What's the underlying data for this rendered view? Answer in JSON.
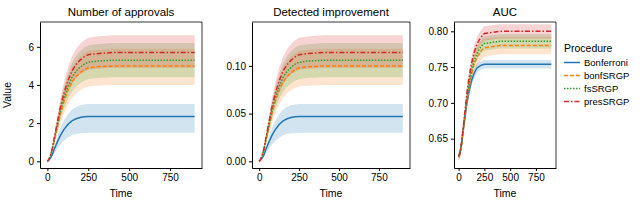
{
  "chart_data": [
    {
      "type": "line",
      "title": "Number of approvals",
      "x_label": "Time",
      "y_label": "Value",
      "x": [
        0,
        10,
        20,
        30,
        40,
        60,
        80,
        100,
        125,
        150,
        175,
        200,
        225,
        250,
        300,
        400,
        500,
        600,
        700,
        800,
        900
      ],
      "xlim": [
        -45,
        945
      ],
      "xticks": [
        0,
        250,
        500,
        750
      ],
      "ylim": [
        -0.35,
        7.3
      ],
      "yticks": [
        0,
        2,
        4,
        6
      ],
      "series": [
        {
          "color": "#1f77b4",
          "line_style": "solid",
          "values": [
            0,
            0.07,
            0.19,
            0.35,
            0.59,
            0.99,
            1.36,
            1.65,
            1.93,
            2.12,
            2.23,
            2.3,
            2.33,
            2.35,
            2.35,
            2.35,
            2.35,
            2.35,
            2.35,
            2.35,
            2.35
          ],
          "lower": [
            0,
            0.04,
            0.12,
            0.22,
            0.38,
            0.63,
            0.87,
            1.06,
            1.23,
            1.36,
            1.43,
            1.47,
            1.49,
            1.5,
            1.5,
            1.5,
            1.5,
            1.5,
            1.5,
            1.5,
            1.5
          ],
          "upper": [
            0,
            0.09,
            0.24,
            0.45,
            0.75,
            1.26,
            1.74,
            2.11,
            2.46,
            2.71,
            2.85,
            2.94,
            2.98,
            3.0,
            3.0,
            3.0,
            3.0,
            3.0,
            3.0,
            3.0,
            3.0
          ]
        },
        {
          "color": "#ff7f0e",
          "line_style": "dashed",
          "values": [
            0,
            0.1,
            0.3,
            0.6,
            1.0,
            1.75,
            2.5,
            3.1,
            3.7,
            4.15,
            4.45,
            4.65,
            4.8,
            4.9,
            4.95,
            5.0,
            5.0,
            5.0,
            5.0,
            5.0,
            5.0
          ],
          "lower": [
            0,
            0.08,
            0.24,
            0.48,
            0.8,
            1.4,
            2.0,
            2.48,
            2.96,
            3.32,
            3.56,
            3.72,
            3.84,
            3.92,
            3.96,
            4.0,
            4.0,
            4.0,
            4.0,
            4.0,
            4.0
          ],
          "upper": [
            0,
            0.12,
            0.35,
            0.71,
            1.18,
            2.07,
            2.95,
            3.66,
            4.37,
            4.9,
            5.25,
            5.49,
            5.66,
            5.78,
            5.84,
            5.9,
            5.9,
            5.9,
            5.9,
            5.9,
            5.9
          ]
        },
        {
          "color": "#2ca02c",
          "line_style": "dotted",
          "values": [
            0,
            0.11,
            0.32,
            0.64,
            1.06,
            1.86,
            2.65,
            3.29,
            3.92,
            4.4,
            4.72,
            4.93,
            5.09,
            5.19,
            5.25,
            5.3,
            5.3,
            5.3,
            5.3,
            5.3,
            5.3
          ],
          "lower": [
            0,
            0.09,
            0.27,
            0.53,
            0.88,
            1.54,
            2.2,
            2.73,
            3.25,
            3.65,
            3.92,
            4.09,
            4.22,
            4.31,
            4.36,
            4.4,
            4.4,
            4.4,
            4.4,
            4.4,
            4.4
          ],
          "upper": [
            0,
            0.13,
            0.37,
            0.75,
            1.24,
            2.18,
            3.1,
            3.85,
            4.59,
            5.15,
            5.52,
            5.77,
            5.96,
            6.07,
            6.14,
            6.2,
            6.2,
            6.2,
            6.2,
            6.2,
            6.2
          ]
        },
        {
          "color": "#d62728",
          "line_style": "dashdot",
          "values": [
            0,
            0.11,
            0.34,
            0.68,
            1.14,
            2.0,
            2.85,
            3.53,
            4.22,
            4.73,
            5.07,
            5.3,
            5.47,
            5.59,
            5.64,
            5.7,
            5.7,
            5.7,
            5.7,
            5.7,
            5.7
          ],
          "lower": [
            0,
            0.1,
            0.29,
            0.58,
            0.98,
            1.72,
            2.45,
            3.04,
            3.63,
            4.07,
            4.36,
            4.56,
            4.7,
            4.8,
            4.85,
            4.9,
            4.9,
            4.9,
            4.9,
            4.9,
            4.9
          ],
          "upper": [
            0,
            0.13,
            0.39,
            0.79,
            1.32,
            2.31,
            3.31,
            4.1,
            4.9,
            5.49,
            5.88,
            6.15,
            6.35,
            6.48,
            6.54,
            6.6,
            6.6,
            6.6,
            6.6,
            6.6,
            6.6
          ]
        }
      ]
    },
    {
      "type": "line",
      "title": "Detected improvement",
      "x_label": "Time",
      "x": [
        0,
        10,
        20,
        30,
        40,
        60,
        80,
        100,
        125,
        150,
        175,
        200,
        225,
        250,
        300,
        400,
        500,
        600,
        700,
        800,
        900
      ],
      "xlim": [
        -45,
        945
      ],
      "xticks": [
        0,
        250,
        500,
        750
      ],
      "ylim": [
        -0.007,
        0.146
      ],
      "yticks": [
        {
          "value": 0,
          "label": "0.00"
        },
        {
          "value": 0.05,
          "label": "0.05"
        },
        {
          "value": 0.1,
          "label": "0.10"
        }
      ],
      "series": [
        {
          "color": "#1f77b4",
          "line_style": "solid",
          "values": [
            0,
            0.0014,
            0.0038,
            0.007,
            0.0118,
            0.0198,
            0.0272,
            0.033,
            0.0386,
            0.0424,
            0.0446,
            0.046,
            0.0466,
            0.047,
            0.047,
            0.047,
            0.047,
            0.047,
            0.047,
            0.047,
            0.047
          ],
          "lower": [
            0,
            0.0008,
            0.0024,
            0.0044,
            0.0076,
            0.0126,
            0.0174,
            0.0212,
            0.0246,
            0.0272,
            0.0286,
            0.0294,
            0.0298,
            0.03,
            0.03,
            0.03,
            0.03,
            0.03,
            0.03,
            0.03,
            0.03
          ],
          "upper": [
            0,
            0.0018,
            0.0048,
            0.009,
            0.015,
            0.0252,
            0.0348,
            0.0422,
            0.0492,
            0.0542,
            0.057,
            0.0588,
            0.0596,
            0.06,
            0.06,
            0.06,
            0.06,
            0.06,
            0.06,
            0.06,
            0.06
          ]
        },
        {
          "color": "#ff7f0e",
          "line_style": "dashed",
          "values": [
            0,
            0.002,
            0.006,
            0.012,
            0.02,
            0.035,
            0.05,
            0.062,
            0.074,
            0.083,
            0.089,
            0.093,
            0.096,
            0.098,
            0.099,
            0.1,
            0.1,
            0.1,
            0.1,
            0.1,
            0.1
          ],
          "lower": [
            0,
            0.0016,
            0.0048,
            0.0096,
            0.016,
            0.028,
            0.04,
            0.0496,
            0.0592,
            0.0664,
            0.0712,
            0.0744,
            0.0768,
            0.0784,
            0.0792,
            0.08,
            0.08,
            0.08,
            0.08,
            0.08,
            0.08
          ],
          "upper": [
            0,
            0.0024,
            0.007,
            0.0142,
            0.0236,
            0.0414,
            0.059,
            0.0732,
            0.0874,
            0.098,
            0.105,
            0.1098,
            0.1132,
            0.1156,
            0.1168,
            0.118,
            0.118,
            0.118,
            0.118,
            0.118,
            0.118
          ]
        },
        {
          "color": "#2ca02c",
          "line_style": "dotted",
          "values": [
            0,
            0.0022,
            0.0064,
            0.0128,
            0.0212,
            0.0372,
            0.053,
            0.0658,
            0.0784,
            0.088,
            0.0944,
            0.0986,
            0.1018,
            0.1038,
            0.105,
            0.106,
            0.106,
            0.106,
            0.106,
            0.106,
            0.106
          ],
          "lower": [
            0,
            0.0018,
            0.0054,
            0.0106,
            0.0176,
            0.0308,
            0.044,
            0.0546,
            0.065,
            0.073,
            0.0784,
            0.0818,
            0.0844,
            0.0862,
            0.0872,
            0.088,
            0.088,
            0.088,
            0.088,
            0.088,
            0.088
          ],
          "upper": [
            0,
            0.0026,
            0.0074,
            0.015,
            0.0248,
            0.0436,
            0.062,
            0.077,
            0.0918,
            0.103,
            0.1104,
            0.1154,
            0.1192,
            0.1214,
            0.1228,
            0.124,
            0.124,
            0.124,
            0.124,
            0.124,
            0.124
          ]
        },
        {
          "color": "#d62728",
          "line_style": "dashdot",
          "values": [
            0,
            0.0022,
            0.0068,
            0.0136,
            0.0228,
            0.04,
            0.057,
            0.0706,
            0.0844,
            0.0946,
            0.1014,
            0.106,
            0.1094,
            0.1118,
            0.1128,
            0.114,
            0.114,
            0.114,
            0.114,
            0.114,
            0.114
          ],
          "lower": [
            0,
            0.002,
            0.0058,
            0.0116,
            0.0196,
            0.0344,
            0.049,
            0.0608,
            0.0726,
            0.0814,
            0.0872,
            0.0912,
            0.094,
            0.096,
            0.097,
            0.098,
            0.098,
            0.098,
            0.098,
            0.098,
            0.098
          ],
          "upper": [
            0,
            0.0026,
            0.0078,
            0.0158,
            0.0264,
            0.0462,
            0.0662,
            0.082,
            0.098,
            0.1098,
            0.1176,
            0.123,
            0.127,
            0.1296,
            0.1308,
            0.132,
            0.132,
            0.132,
            0.132,
            0.132,
            0.132
          ]
        }
      ]
    },
    {
      "type": "line",
      "title": "AUC",
      "x_label": "Time",
      "legend": "right",
      "legend_title": "Procedure",
      "x": [
        0,
        10,
        20,
        30,
        40,
        60,
        80,
        100,
        125,
        150,
        175,
        200,
        225,
        250,
        300,
        400,
        500,
        600,
        700,
        800,
        900
      ],
      "xlim": [
        -45,
        945
      ],
      "xticks": [
        0,
        250,
        500,
        750
      ],
      "ylim": [
        0.609,
        0.813
      ],
      "yticks": [
        {
          "value": 0.65,
          "label": "0.65"
        },
        {
          "value": 0.7,
          "label": "0.70"
        },
        {
          "value": 0.75,
          "label": "0.75"
        },
        {
          "value": 0.8,
          "label": "0.80"
        }
      ],
      "series": [
        {
          "name": "Bonferroni",
          "color": "#1f77b4",
          "line_style": "solid",
          "values": [
            0.625,
            0.629,
            0.635,
            0.644,
            0.657,
            0.679,
            0.7,
            0.715,
            0.731,
            0.741,
            0.748,
            0.751,
            0.753,
            0.754,
            0.754,
            0.754,
            0.754,
            0.754,
            0.754,
            0.754,
            0.754
          ],
          "lower": [
            0.62,
            0.624,
            0.63,
            0.639,
            0.651,
            0.672,
            0.693,
            0.708,
            0.724,
            0.734,
            0.741,
            0.745,
            0.747,
            0.748,
            0.748,
            0.748,
            0.748,
            0.748,
            0.748,
            0.748,
            0.748
          ],
          "upper": [
            0.63,
            0.634,
            0.64,
            0.649,
            0.663,
            0.686,
            0.707,
            0.722,
            0.738,
            0.748,
            0.755,
            0.757,
            0.759,
            0.76,
            0.76,
            0.76,
            0.76,
            0.76,
            0.76,
            0.76,
            0.76
          ]
        },
        {
          "name": "bonfSRGP",
          "color": "#ff7f0e",
          "line_style": "dashed",
          "values": [
            0.625,
            0.628,
            0.634,
            0.644,
            0.656,
            0.679,
            0.703,
            0.721,
            0.74,
            0.754,
            0.763,
            0.769,
            0.774,
            0.777,
            0.778,
            0.78,
            0.78,
            0.78,
            0.78,
            0.78,
            0.78
          ],
          "lower": [
            0.62,
            0.622,
            0.626,
            0.634,
            0.645,
            0.667,
            0.69,
            0.708,
            0.727,
            0.741,
            0.75,
            0.756,
            0.761,
            0.764,
            0.766,
            0.768,
            0.768,
            0.768,
            0.768,
            0.768,
            0.768
          ],
          "upper": [
            0.63,
            0.634,
            0.642,
            0.654,
            0.667,
            0.691,
            0.716,
            0.734,
            0.753,
            0.767,
            0.776,
            0.782,
            0.787,
            0.79,
            0.79,
            0.792,
            0.792,
            0.792,
            0.792,
            0.792,
            0.792
          ]
        },
        {
          "name": "fsSRGP",
          "color": "#2ca02c",
          "line_style": "dotted",
          "values": [
            0.625,
            0.628,
            0.635,
            0.644,
            0.657,
            0.681,
            0.706,
            0.725,
            0.744,
            0.759,
            0.768,
            0.775,
            0.78,
            0.783,
            0.784,
            0.786,
            0.786,
            0.786,
            0.786,
            0.786,
            0.786
          ],
          "lower": [
            0.62,
            0.623,
            0.628,
            0.636,
            0.648,
            0.671,
            0.696,
            0.715,
            0.734,
            0.749,
            0.758,
            0.765,
            0.77,
            0.773,
            0.774,
            0.776,
            0.776,
            0.776,
            0.776,
            0.776,
            0.776
          ],
          "upper": [
            0.63,
            0.633,
            0.642,
            0.652,
            0.666,
            0.691,
            0.716,
            0.735,
            0.754,
            0.769,
            0.778,
            0.785,
            0.79,
            0.793,
            0.794,
            0.796,
            0.796,
            0.796,
            0.796,
            0.796,
            0.796
          ]
        },
        {
          "name": "presSRGP",
          "color": "#d62728",
          "line_style": "dashdot",
          "values": [
            0.625,
            0.629,
            0.636,
            0.646,
            0.66,
            0.686,
            0.713,
            0.734,
            0.755,
            0.77,
            0.781,
            0.788,
            0.793,
            0.797,
            0.798,
            0.8,
            0.8,
            0.8,
            0.8,
            0.8,
            0.8
          ],
          "lower": [
            0.62,
            0.623,
            0.629,
            0.638,
            0.651,
            0.677,
            0.703,
            0.724,
            0.745,
            0.76,
            0.771,
            0.778,
            0.783,
            0.787,
            0.788,
            0.79,
            0.79,
            0.79,
            0.79,
            0.79,
            0.79
          ],
          "upper": [
            0.63,
            0.635,
            0.643,
            0.654,
            0.669,
            0.695,
            0.723,
            0.744,
            0.765,
            0.78,
            0.791,
            0.798,
            0.803,
            0.807,
            0.808,
            0.81,
            0.81,
            0.81,
            0.81,
            0.81,
            0.81
          ]
        }
      ]
    }
  ]
}
